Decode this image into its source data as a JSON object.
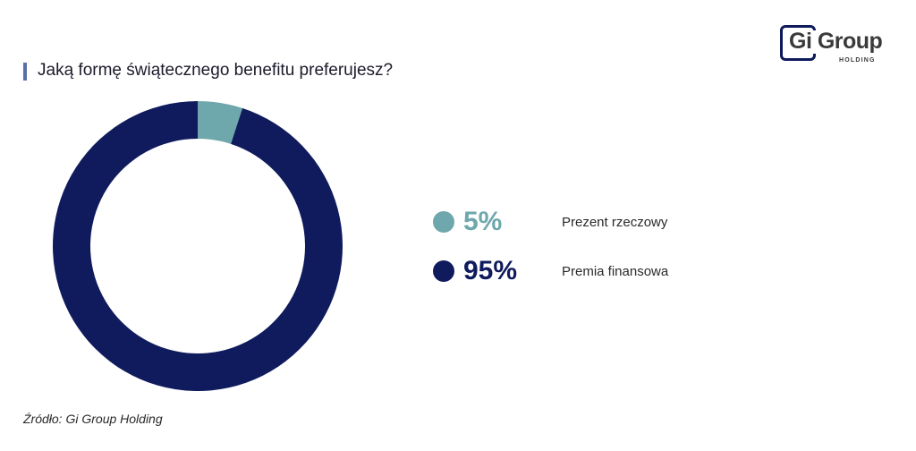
{
  "header": {
    "title": "Jaką formę świątecznego benefitu preferujesz?",
    "logo_text": "Gi Group",
    "logo_subtext": "HOLDING"
  },
  "chart_data": {
    "type": "pie",
    "subtype": "donut",
    "title": "Jaką formę świątecznego benefitu preferujesz?",
    "slices": [
      {
        "label": "Prezent rzeczowy",
        "value": 5,
        "display": "5%",
        "color": "#6ea7ac"
      },
      {
        "label": "Premia finansowa",
        "value": 95,
        "display": "95%",
        "color": "#0f1b5c"
      }
    ],
    "legend_position": "right"
  },
  "footer": {
    "source": "Źródło: Gi Group Holding"
  }
}
